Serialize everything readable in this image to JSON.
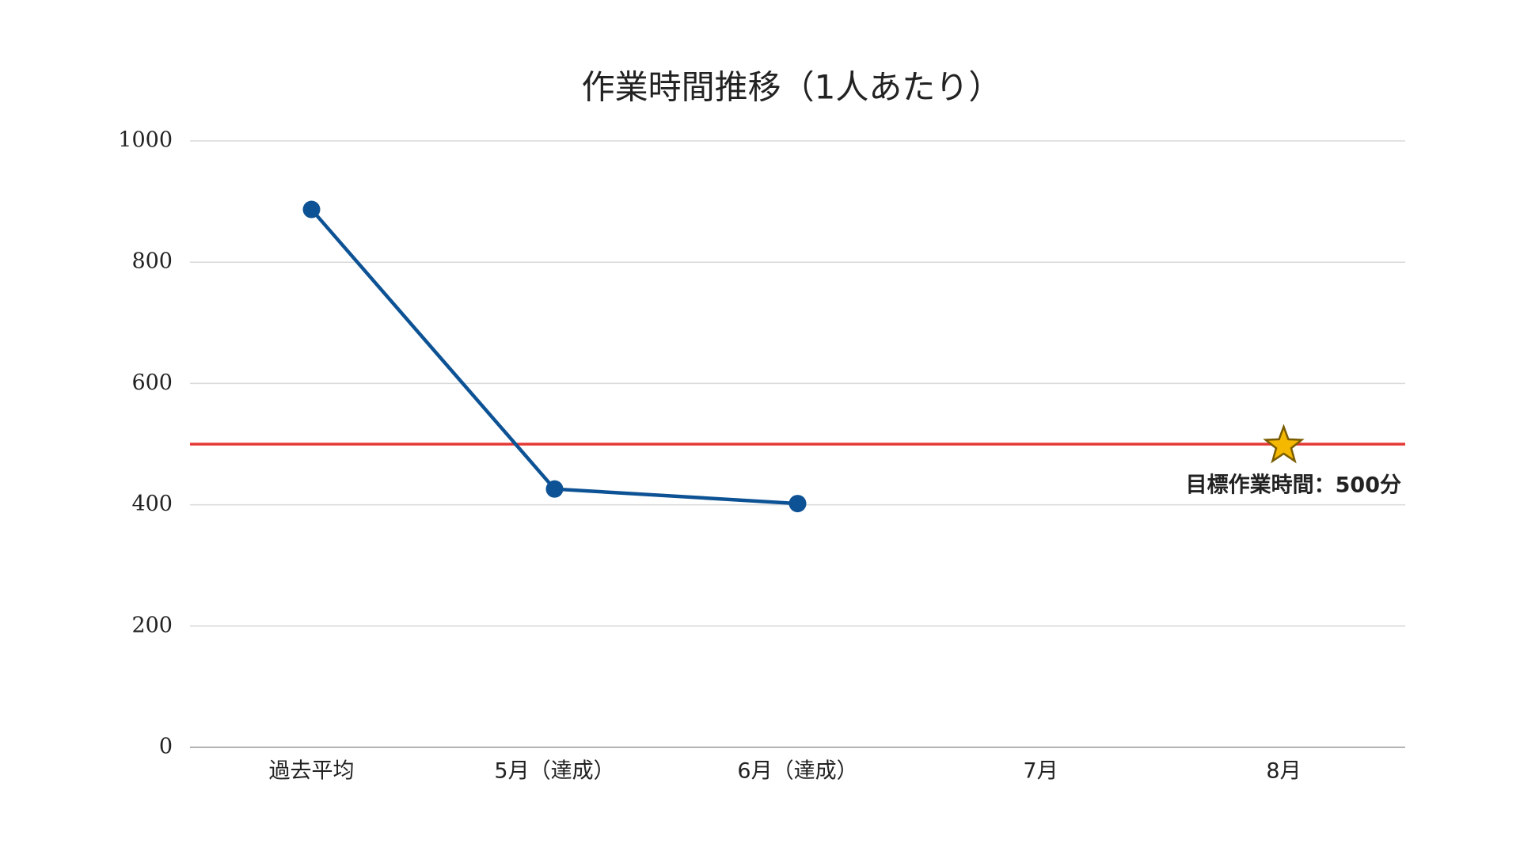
{
  "chart_data": {
    "type": "line",
    "title": "作業時間推移（1人あたり）",
    "categories": [
      "過去平均",
      "5月（達成）",
      "6月（達成）",
      "7月",
      "8月"
    ],
    "series": [
      {
        "name": "作業時間",
        "color": "#0d5294",
        "values": [
          887,
          426,
          402,
          null,
          null
        ]
      }
    ],
    "target": {
      "value": 500,
      "label": "目標作業時間：500分",
      "color": "#e53935",
      "star_color": "#f5b800",
      "category_index": 4
    },
    "ylim": [
      0,
      1000
    ],
    "yticks": [
      0,
      200,
      400,
      600,
      800,
      1000
    ],
    "grid": true,
    "legend": false
  }
}
